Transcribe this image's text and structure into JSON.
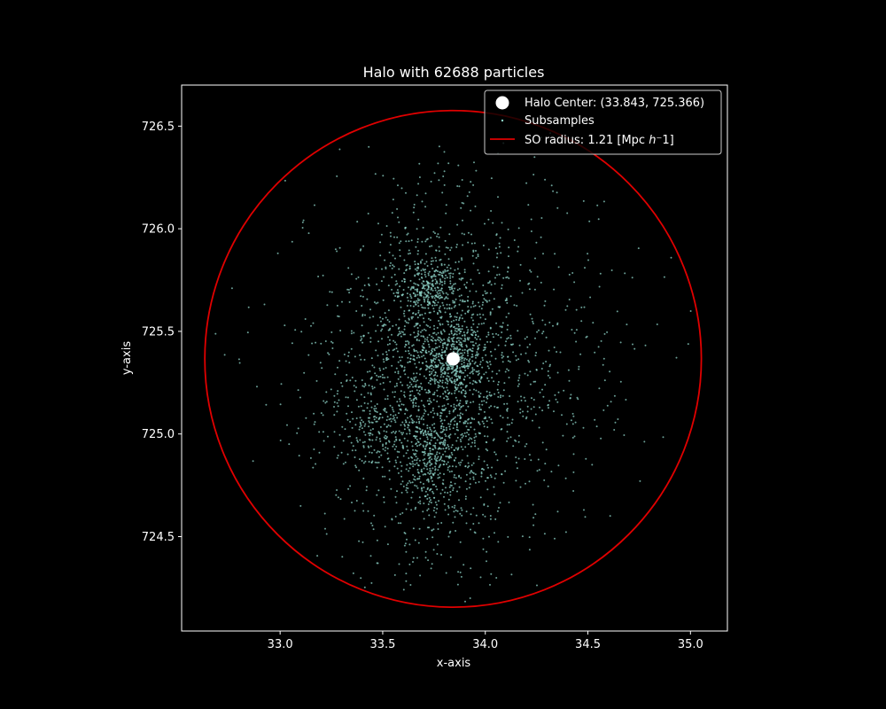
{
  "chart_data": {
    "type": "scatter",
    "title": "Halo with 62688 particles",
    "xlabel": "x-axis",
    "ylabel": "y-axis",
    "xlim": [
      32.52,
      35.18
    ],
    "ylim": [
      724.04,
      726.7
    ],
    "xticks": [
      33.0,
      33.5,
      34.0,
      34.5,
      35.0
    ],
    "xtick_labels": [
      "33.0",
      "33.5",
      "34.0",
      "34.5",
      "35.0"
    ],
    "yticks": [
      724.5,
      725.0,
      725.5,
      726.0,
      726.5
    ],
    "ytick_labels": [
      "724.5",
      "725.0",
      "725.5",
      "726.0",
      "726.5"
    ],
    "grid": false,
    "legend_position": "upper right",
    "halo_center": {
      "x": 33.843,
      "y": 725.366,
      "color": "#ffffff"
    },
    "so_radius": {
      "value": 1.21,
      "color": "#e00000"
    },
    "subsample_color": "#8dd3c7",
    "subsample_clusters": [
      {
        "x": 33.84,
        "y": 725.37,
        "sx": 0.07,
        "sy": 0.09,
        "count": 260
      },
      {
        "x": 33.72,
        "y": 725.7,
        "sx": 0.07,
        "sy": 0.07,
        "count": 230
      },
      {
        "x": 33.74,
        "y": 724.86,
        "sx": 0.06,
        "sy": 0.12,
        "count": 200
      },
      {
        "x": 33.76,
        "y": 725.25,
        "sx": 0.18,
        "sy": 0.4,
        "count": 1100
      },
      {
        "x": 33.84,
        "y": 725.3,
        "sx": 0.36,
        "sy": 0.4,
        "count": 900
      },
      {
        "x": 33.85,
        "y": 725.35,
        "sx": 0.48,
        "sy": 0.48,
        "count": 380
      },
      {
        "x": 33.46,
        "y": 725.0,
        "sx": 0.1,
        "sy": 0.08,
        "count": 120
      }
    ],
    "series": [
      {
        "name": "Halo Center: (33.843, 725.366)",
        "marker": "large white circle"
      },
      {
        "name": "Subsamples",
        "marker": "small teal points"
      },
      {
        "name": "SO radius: 1.21 [Mpc h⁻1]",
        "marker": "red line"
      }
    ]
  },
  "legend": {
    "center_label": "Halo Center: (33.843, 725.366)",
    "subsamples_label": "Subsamples",
    "so_radius_prefix": "SO radius: 1.21 [Mpc ",
    "so_radius_h": "h",
    "so_radius_suffix": "⁻1]"
  }
}
